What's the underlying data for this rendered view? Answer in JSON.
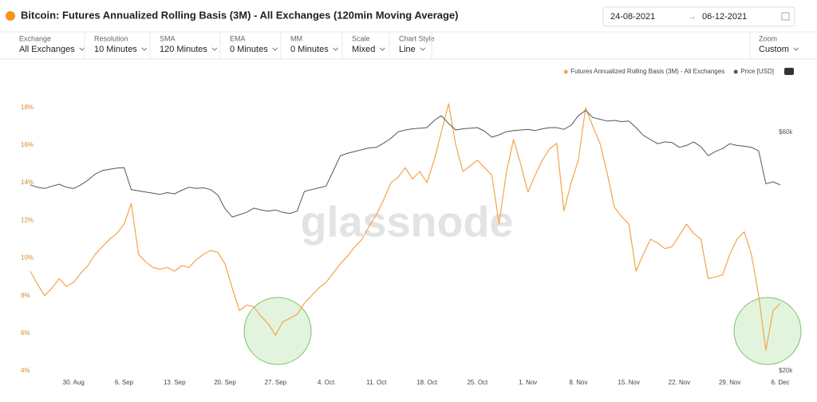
{
  "header": {
    "title": "Bitcoin: Futures Annualized Rolling Basis (3M) - All Exchanges (120min Moving Average)",
    "date_from": "24-08-2021",
    "date_to": "06-12-2021"
  },
  "controls": [
    {
      "label": "Exchange",
      "value": "All Exchanges"
    },
    {
      "label": "Resolution",
      "value": "10 Minutes"
    },
    {
      "label": "SMA",
      "value": "120 Minutes"
    },
    {
      "label": "EMA",
      "value": "0 Minutes"
    },
    {
      "label": "MM",
      "value": "0 Minutes"
    },
    {
      "label": "Scale",
      "value": "Mixed"
    },
    {
      "label": "Chart Style",
      "value": "Line"
    }
  ],
  "zoom": {
    "label": "Zoom",
    "value": "Custom"
  },
  "chart_data": {
    "type": "line",
    "watermark": "glassnode",
    "grid": false,
    "categories": [
      null,
      null,
      null,
      null,
      null,
      null,
      "30. Aug",
      null,
      null,
      null,
      null,
      null,
      null,
      "6. Sep",
      null,
      null,
      null,
      null,
      null,
      null,
      "13. Sep",
      null,
      null,
      null,
      null,
      null,
      null,
      "20. Sep",
      null,
      null,
      null,
      null,
      null,
      null,
      "27. Sep",
      null,
      null,
      null,
      null,
      null,
      null,
      "4. Oct",
      null,
      null,
      null,
      null,
      null,
      null,
      "11. Oct",
      null,
      null,
      null,
      null,
      null,
      null,
      "18. Oct",
      null,
      null,
      null,
      null,
      null,
      null,
      "25. Oct",
      null,
      null,
      null,
      null,
      null,
      null,
      "1. Nov",
      null,
      null,
      null,
      null,
      null,
      null,
      "8. Nov",
      null,
      null,
      null,
      null,
      null,
      null,
      "15. Nov",
      null,
      null,
      null,
      null,
      null,
      null,
      "22. Nov",
      null,
      null,
      null,
      null,
      null,
      null,
      "29. Nov",
      null,
      null,
      null,
      null,
      null,
      null,
      "6. Dec"
    ],
    "series": [
      {
        "name": "Futures Annualized Rolling Basis (3M) - All Exchanges",
        "color": "#f2a54a",
        "axis": "y",
        "values": [
          9.3,
          8.6,
          8.0,
          8.4,
          8.9,
          8.5,
          8.7,
          9.2,
          9.6,
          10.2,
          10.6,
          11.0,
          11.3,
          11.8,
          12.9,
          10.2,
          9.8,
          9.5,
          9.4,
          9.5,
          9.3,
          9.6,
          9.5,
          9.9,
          10.2,
          10.4,
          10.3,
          9.7,
          8.4,
          7.2,
          7.5,
          7.4,
          6.9,
          6.5,
          5.9,
          6.6,
          6.8,
          7.0,
          7.6,
          8.0,
          8.4,
          8.7,
          9.2,
          9.7,
          10.1,
          10.6,
          11.0,
          11.7,
          12.3,
          13.1,
          14.0,
          14.3,
          14.8,
          14.2,
          14.6,
          14.0,
          15.2,
          16.7,
          18.2,
          16.0,
          14.6,
          14.9,
          15.2,
          14.8,
          14.4,
          11.8,
          14.5,
          16.3,
          15.0,
          13.5,
          14.4,
          15.2,
          15.8,
          16.1,
          12.5,
          14.0,
          15.2,
          18.0,
          17.0,
          16.1,
          14.5,
          12.7,
          12.2,
          11.8,
          9.3,
          10.2,
          11.0,
          10.8,
          10.5,
          10.6,
          11.2,
          11.8,
          11.3,
          11.0,
          8.9,
          9.0,
          9.1,
          10.2,
          11.0,
          11.4,
          10.2,
          8.0,
          5.1,
          7.2,
          7.6
        ]
      },
      {
        "name": "Price [USD]",
        "color": "#555555",
        "axis": "y2",
        "values": [
          51200,
          50800,
          50600,
          51000,
          51300,
          50800,
          50600,
          51200,
          52000,
          53000,
          53600,
          53800,
          54000,
          54100,
          50400,
          50200,
          50000,
          49800,
          49600,
          49900,
          49700,
          50300,
          50800,
          50600,
          50700,
          50400,
          49500,
          47200,
          45800,
          46200,
          46600,
          47300,
          47000,
          46800,
          47000,
          46600,
          46400,
          46800,
          50100,
          50400,
          50700,
          51000,
          53500,
          56100,
          56500,
          56800,
          57100,
          57400,
          57500,
          58200,
          59000,
          60100,
          60400,
          60600,
          60700,
          60800,
          62000,
          62800,
          61500,
          60400,
          60600,
          60700,
          60800,
          60200,
          59200,
          59600,
          60100,
          60300,
          60400,
          60500,
          60300,
          60600,
          60800,
          60800,
          60500,
          61200,
          62800,
          63700,
          62500,
          62200,
          61900,
          62000,
          61800,
          61900,
          60800,
          59500,
          58800,
          58100,
          58400,
          58300,
          57500,
          57800,
          58400,
          57600,
          56100,
          56800,
          57300,
          58100,
          57800,
          57700,
          57500,
          56900,
          51400,
          51700,
          51200
        ]
      }
    ],
    "ylim": [
      4,
      18.5
    ],
    "yticks": [
      {
        "value": 4,
        "label": "4%"
      },
      {
        "value": 6,
        "label": "6%"
      },
      {
        "value": 8,
        "label": "8%"
      },
      {
        "value": 10,
        "label": "10%"
      },
      {
        "value": 12,
        "label": "12%"
      },
      {
        "value": 14,
        "label": "14%"
      },
      {
        "value": 16,
        "label": "16%"
      },
      {
        "value": 18,
        "label": "18%"
      }
    ],
    "y2lim": [
      20000,
      65750
    ],
    "y2ticks": [
      {
        "value": 20000,
        "label": "$20k"
      },
      {
        "value": 60000,
        "label": "$60k"
      }
    ]
  }
}
